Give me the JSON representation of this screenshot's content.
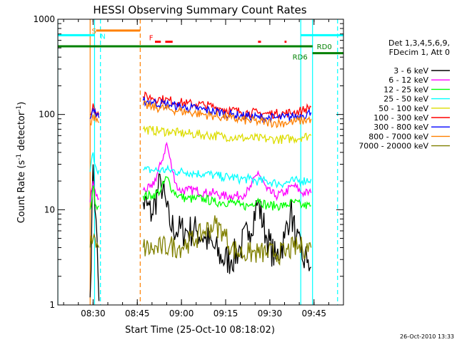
{
  "chart_data": {
    "type": "line",
    "title": "HESSI Observing Summary Count Rates",
    "xlabel": "Start Time (25-Oct-10 08:18:02)",
    "ylabel_main": "Count Rate (s",
    "ylabel_sup1": "-1",
    "ylabel_mid": " detector",
    "ylabel_sup2": "-1",
    "ylabel_end": ")",
    "y_scale": "log",
    "ylim": [
      1,
      1000
    ],
    "xlim": [
      "08:18:02",
      "09:55:00"
    ],
    "x_ticks": [
      "08:30",
      "08:45",
      "09:00",
      "09:15",
      "09:30",
      "09:45"
    ],
    "y_ticks": [
      {
        "value": 1,
        "label": "1"
      },
      {
        "value": 10,
        "label": "10"
      },
      {
        "value": 100,
        "label": "100"
      },
      {
        "value": 1000,
        "label": "1000"
      }
    ],
    "grid": false,
    "legend_placement": "right",
    "legend_header": [
      "Det 1,3,4,5,6,9,",
      "FDecim 1, Att 0"
    ],
    "series": [
      {
        "name": "3 - 6 keV",
        "color": "#000000",
        "points": [
          [
            "08:29:00",
            1.2
          ],
          [
            "08:30:00",
            30
          ],
          [
            "08:31:00",
            8
          ],
          [
            "08:32:00",
            1.1
          ],
          [
            "08:47:00",
            12
          ],
          [
            "08:50:00",
            9
          ],
          [
            "08:53:00",
            20
          ],
          [
            "08:56:00",
            7
          ],
          [
            "08:59:00",
            6
          ],
          [
            "09:02:00",
            6
          ],
          [
            "09:05:00",
            6
          ],
          [
            "09:08:00",
            5
          ],
          [
            "09:11:00",
            4
          ],
          [
            "09:14:00",
            3
          ],
          [
            "09:17:00",
            3
          ],
          [
            "09:20:00",
            4
          ],
          [
            "09:23:00",
            6
          ],
          [
            "09:26:00",
            12
          ],
          [
            "09:29:00",
            5
          ],
          [
            "09:32:00",
            3
          ],
          [
            "09:35:00",
            5
          ],
          [
            "09:37:00",
            10
          ],
          [
            "09:39:00",
            5
          ],
          [
            "09:41:00",
            3
          ],
          [
            "09:43:00",
            3
          ],
          [
            "09:44:00",
            2.5
          ]
        ]
      },
      {
        "name": "6 - 12 keV",
        "color": "#ff00ff",
        "points": [
          [
            "08:29:00",
            12
          ],
          [
            "08:30:00",
            20
          ],
          [
            "08:31:00",
            14
          ],
          [
            "08:32:00",
            13
          ],
          [
            "08:47:00",
            16
          ],
          [
            "08:50:00",
            17
          ],
          [
            "08:53:00",
            30
          ],
          [
            "08:55:00",
            50
          ],
          [
            "08:57:00",
            25
          ],
          [
            "08:59:00",
            16
          ],
          [
            "09:02:00",
            16
          ],
          [
            "09:05:00",
            16
          ],
          [
            "09:08:00",
            15
          ],
          [
            "09:11:00",
            15
          ],
          [
            "09:14:00",
            14
          ],
          [
            "09:17:00",
            14
          ],
          [
            "09:20:00",
            14
          ],
          [
            "09:23:00",
            16
          ],
          [
            "09:26:00",
            25
          ],
          [
            "09:29:00",
            16
          ],
          [
            "09:32:00",
            14
          ],
          [
            "09:35:00",
            15
          ],
          [
            "09:38:00",
            18
          ],
          [
            "09:41:00",
            15
          ],
          [
            "09:44:00",
            15
          ]
        ]
      },
      {
        "name": "12 - 25 keV",
        "color": "#00ff00",
        "points": [
          [
            "08:29:00",
            10
          ],
          [
            "08:30:00",
            18
          ],
          [
            "08:31:00",
            11
          ],
          [
            "08:32:00",
            11
          ],
          [
            "08:47:00",
            14
          ],
          [
            "08:50:00",
            14
          ],
          [
            "08:53:00",
            16
          ],
          [
            "08:55:00",
            22
          ],
          [
            "08:57:00",
            16
          ],
          [
            "08:59:00",
            14
          ],
          [
            "09:02:00",
            13
          ],
          [
            "09:05:00",
            13
          ],
          [
            "09:08:00",
            13
          ],
          [
            "09:11:00",
            12
          ],
          [
            "09:14:00",
            12
          ],
          [
            "09:17:00",
            12
          ],
          [
            "09:20:00",
            11
          ],
          [
            "09:23:00",
            11
          ],
          [
            "09:26:00",
            13
          ],
          [
            "09:29:00",
            11
          ],
          [
            "09:32:00",
            11
          ],
          [
            "09:35:00",
            11
          ],
          [
            "09:38:00",
            12
          ],
          [
            "09:41:00",
            11
          ],
          [
            "09:44:00",
            11
          ]
        ]
      },
      {
        "name": "25 - 50 keV",
        "color": "#00ffff",
        "points": [
          [
            "08:29:00",
            25
          ],
          [
            "08:30:00",
            40
          ],
          [
            "08:31:00",
            28
          ],
          [
            "08:32:00",
            26
          ],
          [
            "08:47:00",
            26
          ],
          [
            "08:50:00",
            26
          ],
          [
            "08:53:00",
            26
          ],
          [
            "08:56:00",
            26
          ],
          [
            "08:59:00",
            25
          ],
          [
            "09:02:00",
            25
          ],
          [
            "09:05:00",
            24
          ],
          [
            "09:08:00",
            24
          ],
          [
            "09:11:00",
            23
          ],
          [
            "09:14:00",
            22
          ],
          [
            "09:17:00",
            22
          ],
          [
            "09:20:00",
            21
          ],
          [
            "09:23:00",
            21
          ],
          [
            "09:26:00",
            20
          ],
          [
            "09:29:00",
            20
          ],
          [
            "09:32:00",
            19
          ],
          [
            "09:35:00",
            19
          ],
          [
            "09:38:00",
            20
          ],
          [
            "09:41:00",
            20
          ],
          [
            "09:44:00",
            21
          ]
        ]
      },
      {
        "name": "50 - 100 keV",
        "color": "#dddd00",
        "points": [
          [
            "08:47:00",
            70
          ],
          [
            "08:50:00",
            68
          ],
          [
            "08:53:00",
            67
          ],
          [
            "08:56:00",
            66
          ],
          [
            "08:59:00",
            64
          ],
          [
            "09:02:00",
            63
          ],
          [
            "09:05:00",
            62
          ],
          [
            "09:08:00",
            61
          ],
          [
            "09:11:00",
            60
          ],
          [
            "09:14:00",
            59
          ],
          [
            "09:17:00",
            58
          ],
          [
            "09:20:00",
            57
          ],
          [
            "09:23:00",
            56
          ],
          [
            "09:26:00",
            56
          ],
          [
            "09:29:00",
            55
          ],
          [
            "09:32:00",
            55
          ],
          [
            "09:35:00",
            55
          ],
          [
            "09:38:00",
            56
          ],
          [
            "09:41:00",
            58
          ],
          [
            "09:44:00",
            60
          ]
        ]
      },
      {
        "name": "100 - 300 keV",
        "color": "#ff0000",
        "points": [
          [
            "08:29:00",
            100
          ],
          [
            "08:30:00",
            130
          ],
          [
            "08:31:00",
            105
          ],
          [
            "08:32:00",
            100
          ],
          [
            "08:47:00",
            155
          ],
          [
            "08:50:00",
            150
          ],
          [
            "08:53:00",
            145
          ],
          [
            "08:56:00",
            140
          ],
          [
            "08:59:00",
            135
          ],
          [
            "09:02:00",
            130
          ],
          [
            "09:05:00",
            128
          ],
          [
            "09:08:00",
            125
          ],
          [
            "09:11:00",
            120
          ],
          [
            "09:14:00",
            115
          ],
          [
            "09:17:00",
            110
          ],
          [
            "09:20:00",
            107
          ],
          [
            "09:23:00",
            105
          ],
          [
            "09:26:00",
            103
          ],
          [
            "09:29:00",
            102
          ],
          [
            "09:32:00",
            102
          ],
          [
            "09:35:00",
            103
          ],
          [
            "09:38:00",
            105
          ],
          [
            "09:41:00",
            110
          ],
          [
            "09:44:00",
            120
          ]
        ]
      },
      {
        "name": "300 - 800 keV",
        "color": "#0000ff",
        "points": [
          [
            "08:29:00",
            90
          ],
          [
            "08:30:00",
            115
          ],
          [
            "08:31:00",
            95
          ],
          [
            "08:32:00",
            92
          ],
          [
            "08:47:00",
            140
          ],
          [
            "08:50:00",
            135
          ],
          [
            "08:53:00",
            130
          ],
          [
            "08:56:00",
            126
          ],
          [
            "08:59:00",
            122
          ],
          [
            "09:02:00",
            118
          ],
          [
            "09:05:00",
            115
          ],
          [
            "09:08:00",
            112
          ],
          [
            "09:11:00",
            108
          ],
          [
            "09:14:00",
            104
          ],
          [
            "09:17:00",
            100
          ],
          [
            "09:20:00",
            97
          ],
          [
            "09:23:00",
            95
          ],
          [
            "09:26:00",
            93
          ],
          [
            "09:29:00",
            92
          ],
          [
            "09:32:00",
            92
          ],
          [
            "09:35:00",
            93
          ],
          [
            "09:38:00",
            95
          ],
          [
            "09:41:00",
            98
          ],
          [
            "09:44:00",
            105
          ]
        ]
      },
      {
        "name": "800 - 7000 keV",
        "color": "#ff8000",
        "points": [
          [
            "08:29:00",
            80
          ],
          [
            "08:30:00",
            100
          ],
          [
            "08:31:00",
            85
          ],
          [
            "08:32:00",
            82
          ],
          [
            "08:47:00",
            125
          ],
          [
            "08:50:00",
            120
          ],
          [
            "08:53:00",
            117
          ],
          [
            "08:56:00",
            113
          ],
          [
            "08:59:00",
            110
          ],
          [
            "09:02:00",
            106
          ],
          [
            "09:05:00",
            103
          ],
          [
            "09:08:00",
            100
          ],
          [
            "09:11:00",
            97
          ],
          [
            "09:14:00",
            94
          ],
          [
            "09:17:00",
            91
          ],
          [
            "09:20:00",
            88
          ],
          [
            "09:23:00",
            86
          ],
          [
            "09:26:00",
            84
          ],
          [
            "09:29:00",
            83
          ],
          [
            "09:32:00",
            82
          ],
          [
            "09:35:00",
            82
          ],
          [
            "09:38:00",
            84
          ],
          [
            "09:41:00",
            86
          ],
          [
            "09:44:00",
            90
          ]
        ]
      },
      {
        "name": "7000 - 20000 keV",
        "color": "#808000",
        "points": [
          [
            "08:29:00",
            4
          ],
          [
            "08:30:00",
            5
          ],
          [
            "08:31:00",
            4
          ],
          [
            "08:32:00",
            4
          ],
          [
            "08:47:00",
            4
          ],
          [
            "08:50:00",
            3.8
          ],
          [
            "08:53:00",
            4
          ],
          [
            "08:56:00",
            4.2
          ],
          [
            "08:59:00",
            4
          ],
          [
            "09:02:00",
            4.5
          ],
          [
            "09:05:00",
            5
          ],
          [
            "09:08:00",
            6
          ],
          [
            "09:11:00",
            7
          ],
          [
            "09:14:00",
            6
          ],
          [
            "09:17:00",
            4
          ],
          [
            "09:20:00",
            3.5
          ],
          [
            "09:23:00",
            3.5
          ],
          [
            "09:26:00",
            3.5
          ],
          [
            "09:29:00",
            3.5
          ],
          [
            "09:32:00",
            3.5
          ],
          [
            "09:35:00",
            3.5
          ],
          [
            "09:38:00",
            4
          ],
          [
            "09:41:00",
            4
          ],
          [
            "09:44:00",
            4
          ]
        ]
      }
    ],
    "vertical_markers": [
      {
        "time": "08:29:00",
        "color": "#ff8000",
        "style": "solid"
      },
      {
        "time": "08:30:30",
        "color": "#00ffff",
        "style": "solid"
      },
      {
        "time": "08:32:30",
        "color": "#00ffff",
        "style": "dashed"
      },
      {
        "time": "08:46:00",
        "color": "#ff8000",
        "style": "dashed"
      },
      {
        "time": "09:40:30",
        "color": "#00ffff",
        "style": "solid"
      },
      {
        "time": "09:44:30",
        "color": "#00ffff",
        "style": "solid"
      },
      {
        "time": "09:53:00",
        "color": "#00ffff",
        "style": "dashed"
      },
      {
        "time": "08:18:02",
        "color": "#00ffff",
        "style": "solid"
      }
    ],
    "flag_bars": [
      {
        "label": "S",
        "color": "#ff8000",
        "start": "08:31:00",
        "end": "08:46:00",
        "level": 760
      },
      {
        "label": "N",
        "color": "#00ffff",
        "start": "08:18:02",
        "end": "08:30:30",
        "level": 680
      },
      {
        "label": "",
        "color": "#00ffff",
        "start": "09:40:30",
        "end": "09:55:00",
        "level": 680
      },
      {
        "label": "",
        "color": "#008000",
        "start": "08:18:02",
        "end": "09:44:30",
        "level": 520
      },
      {
        "label": "RD0",
        "color": "#008000",
        "start": "09:40:30",
        "end": "09:44:30",
        "level": 520
      },
      {
        "label": "RD6",
        "color": "#008000",
        "start": "09:44:30",
        "end": "09:55:00",
        "level": 440
      }
    ],
    "f_label": {
      "label": "F",
      "color": "#ff0000",
      "time": "08:49:00",
      "level": 600
    },
    "f_marks": [
      {
        "start": "08:51:00",
        "end": "08:53:00",
        "level": 580,
        "color": "#ff0000"
      },
      {
        "start": "08:54:30",
        "end": "08:57:00",
        "level": 580,
        "color": "#ff0000"
      },
      {
        "start": "09:26:00",
        "end": "09:27:00",
        "level": 580,
        "color": "#ff0000"
      },
      {
        "start": "09:35:00",
        "end": "09:35:40",
        "level": 580,
        "color": "#ff0000"
      }
    ],
    "footer_date": "26-Oct-2010 13:33"
  }
}
